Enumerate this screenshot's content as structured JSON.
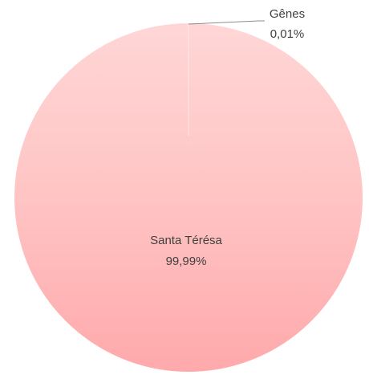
{
  "chart_data": {
    "type": "pie",
    "title": "",
    "categories": [
      "Gênes",
      "Santa Térésa"
    ],
    "values": [
      0.01,
      99.99
    ],
    "labels": [
      {
        "name": "Gênes",
        "value_text": "0,01%"
      },
      {
        "name": "Santa Térésa",
        "value_text": "99,99%"
      }
    ],
    "legend": "none",
    "colors": [
      "#ffd6d6",
      "#ffc4c4",
      "#ffa9ab"
    ],
    "leader_line_color": "#8c8c8c"
  }
}
